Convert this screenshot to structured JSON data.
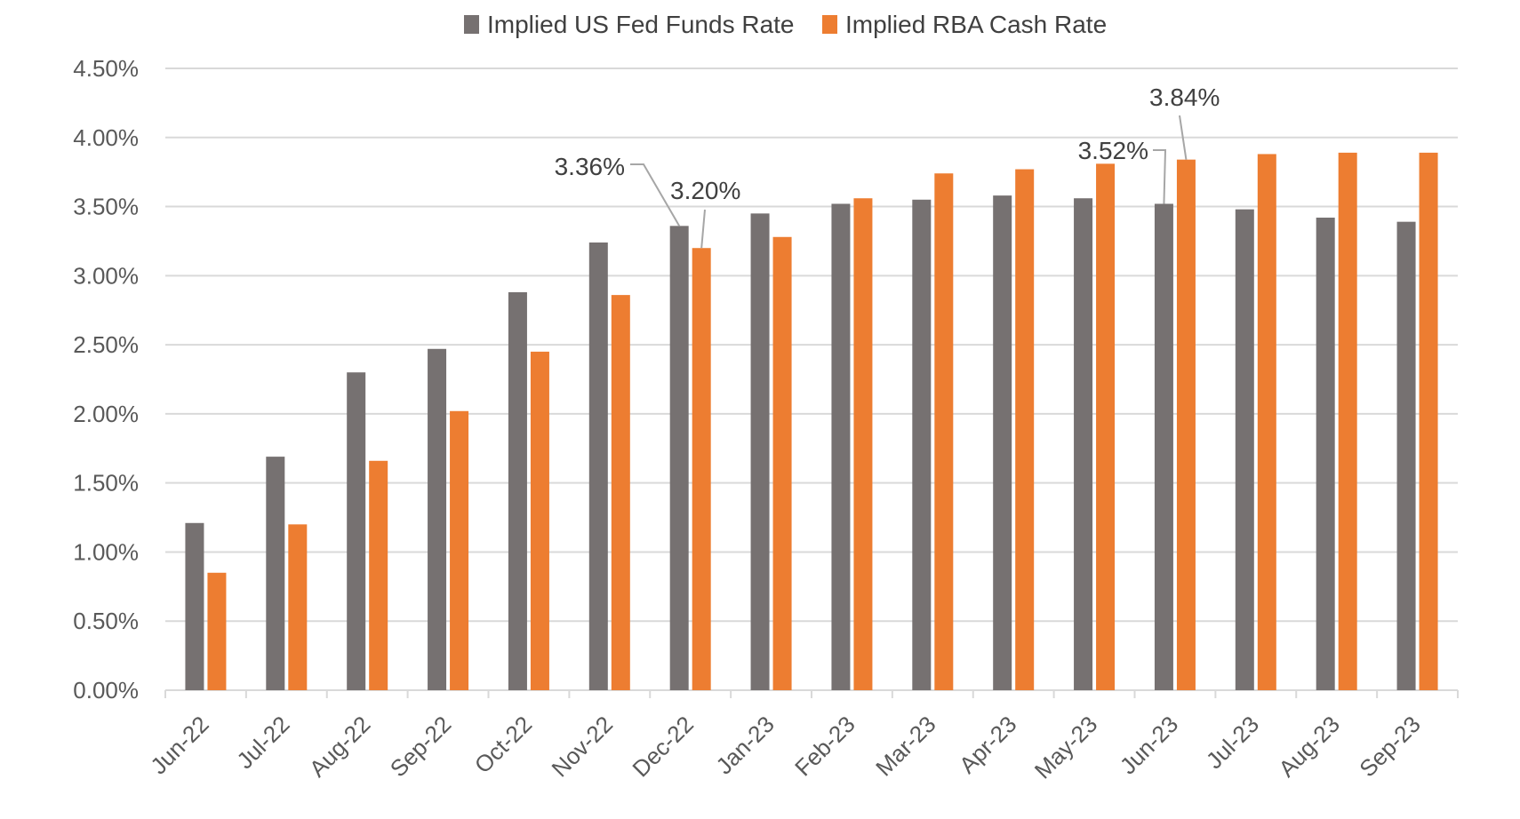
{
  "chart_data": {
    "type": "bar",
    "categories": [
      "Jun-22",
      "Jul-22",
      "Aug-22",
      "Sep-22",
      "Oct-22",
      "Nov-22",
      "Dec-22",
      "Jan-23",
      "Feb-23",
      "Mar-23",
      "Apr-23",
      "May-23",
      "Jun-23",
      "Jul-23",
      "Aug-23",
      "Sep-23"
    ],
    "series": [
      {
        "name": "Implied US Fed Funds Rate",
        "color": "#767171",
        "values": [
          1.21,
          1.69,
          2.3,
          2.47,
          2.88,
          3.24,
          3.36,
          3.45,
          3.52,
          3.55,
          3.58,
          3.56,
          3.52,
          3.48,
          3.42,
          3.39
        ]
      },
      {
        "name": "Implied RBA Cash Rate",
        "color": "#ED7D31",
        "values": [
          0.85,
          1.2,
          1.66,
          2.02,
          2.45,
          2.86,
          3.2,
          3.28,
          3.56,
          3.74,
          3.77,
          3.81,
          3.84,
          3.88,
          3.89,
          3.89
        ]
      }
    ],
    "ylim": [
      0,
      4.5
    ],
    "yticks": [
      "0.00%",
      "0.50%",
      "1.00%",
      "1.50%",
      "2.00%",
      "2.50%",
      "3.00%",
      "3.50%",
      "4.00%",
      "4.50%"
    ],
    "ytick_values": [
      0,
      0.5,
      1.0,
      1.5,
      2.0,
      2.5,
      3.0,
      3.5,
      4.0,
      4.5
    ],
    "grid": true,
    "legend_position": "top-center",
    "annotations": [
      {
        "text": "3.36%",
        "series": 0,
        "category": "Dec-22"
      },
      {
        "text": "3.20%",
        "series": 1,
        "category": "Dec-22"
      },
      {
        "text": "3.52%",
        "series": 0,
        "category": "Jun-23"
      },
      {
        "text": "3.84%",
        "series": 1,
        "category": "Jun-23"
      }
    ],
    "title": "",
    "xlabel": "",
    "ylabel": ""
  }
}
